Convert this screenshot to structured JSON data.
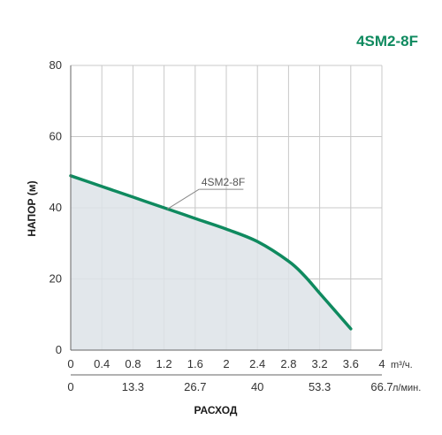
{
  "chart_data": {
    "type": "area",
    "title": "4SM2-8F",
    "ylabel": "НАПОР (м)",
    "xlabel": "РАСХОД",
    "ylim": [
      0,
      80
    ],
    "yticks": [
      "0",
      "20",
      "40",
      "60",
      "80"
    ],
    "xlim": [
      0,
      4
    ],
    "x_primary_ticks": [
      "0",
      "0.4",
      "0.8",
      "1.2",
      "1.6",
      "2",
      "2.4",
      "2.8",
      "3.2",
      "3.6",
      "4"
    ],
    "x_primary_unit": "m³/ч.",
    "x_secondary_ticks": [
      {
        "label": "0",
        "x": 0
      },
      {
        "label": "13.3",
        "x": 0.8
      },
      {
        "label": "26.7",
        "x": 1.6
      },
      {
        "label": "40",
        "x": 2.4
      },
      {
        "label": "53.3",
        "x": 3.2
      },
      {
        "label": "66.7",
        "x": 4.0
      }
    ],
    "x_secondary_unit": "л/мин.",
    "grid": true,
    "series": [
      {
        "name": "4SM2-8F",
        "x": [
          0,
          0.4,
          0.8,
          1.2,
          1.6,
          2.0,
          2.4,
          2.8,
          3.0,
          3.2,
          3.4,
          3.6
        ],
        "y": [
          49,
          46,
          43,
          40,
          37,
          34,
          30.5,
          25,
          21,
          16,
          11,
          6
        ]
      }
    ],
    "colors": {
      "curve": "#0f8a5f",
      "fill": "#dde3e8",
      "title": "#0f8a5f",
      "grid": "#c8c8c8"
    }
  }
}
